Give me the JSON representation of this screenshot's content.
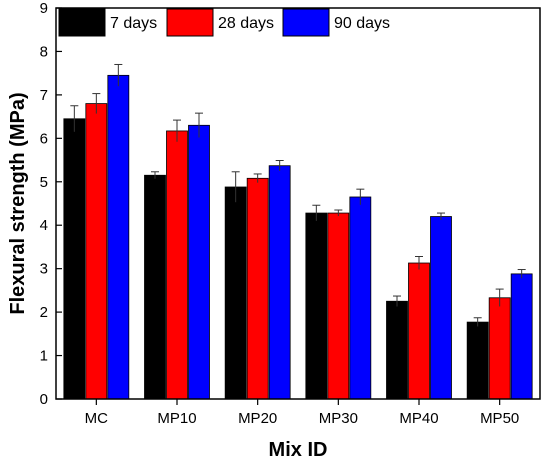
{
  "chart_data": {
    "type": "bar",
    "title": "",
    "xlabel": "Mix ID",
    "ylabel": "Flexural strength (MPa)",
    "ylim": [
      0,
      9
    ],
    "yticks": [
      "0",
      "1",
      "2",
      "3",
      "4",
      "5",
      "6",
      "7",
      "8",
      "9"
    ],
    "categories": [
      "MC",
      "MP10",
      "MP20",
      "MP30",
      "MP40",
      "MP50"
    ],
    "grid": false,
    "legend_position": "top-left",
    "series": [
      {
        "name": "7 days",
        "color": "#000000",
        "values": [
          6.45,
          5.15,
          4.88,
          4.28,
          2.25,
          1.77
        ],
        "errors": [
          0.3,
          0.08,
          0.35,
          0.18,
          0.12,
          0.1
        ]
      },
      {
        "name": "28 days",
        "color": "#ff0000",
        "values": [
          6.8,
          6.17,
          5.08,
          4.28,
          3.13,
          2.33
        ],
        "errors": [
          0.23,
          0.25,
          0.1,
          0.07,
          0.15,
          0.2
        ]
      },
      {
        "name": "90 days",
        "color": "#0000ff",
        "values": [
          7.45,
          6.3,
          5.37,
          4.65,
          4.2,
          2.88
        ],
        "errors": [
          0.25,
          0.28,
          0.12,
          0.18,
          0.08,
          0.1
        ]
      }
    ]
  }
}
